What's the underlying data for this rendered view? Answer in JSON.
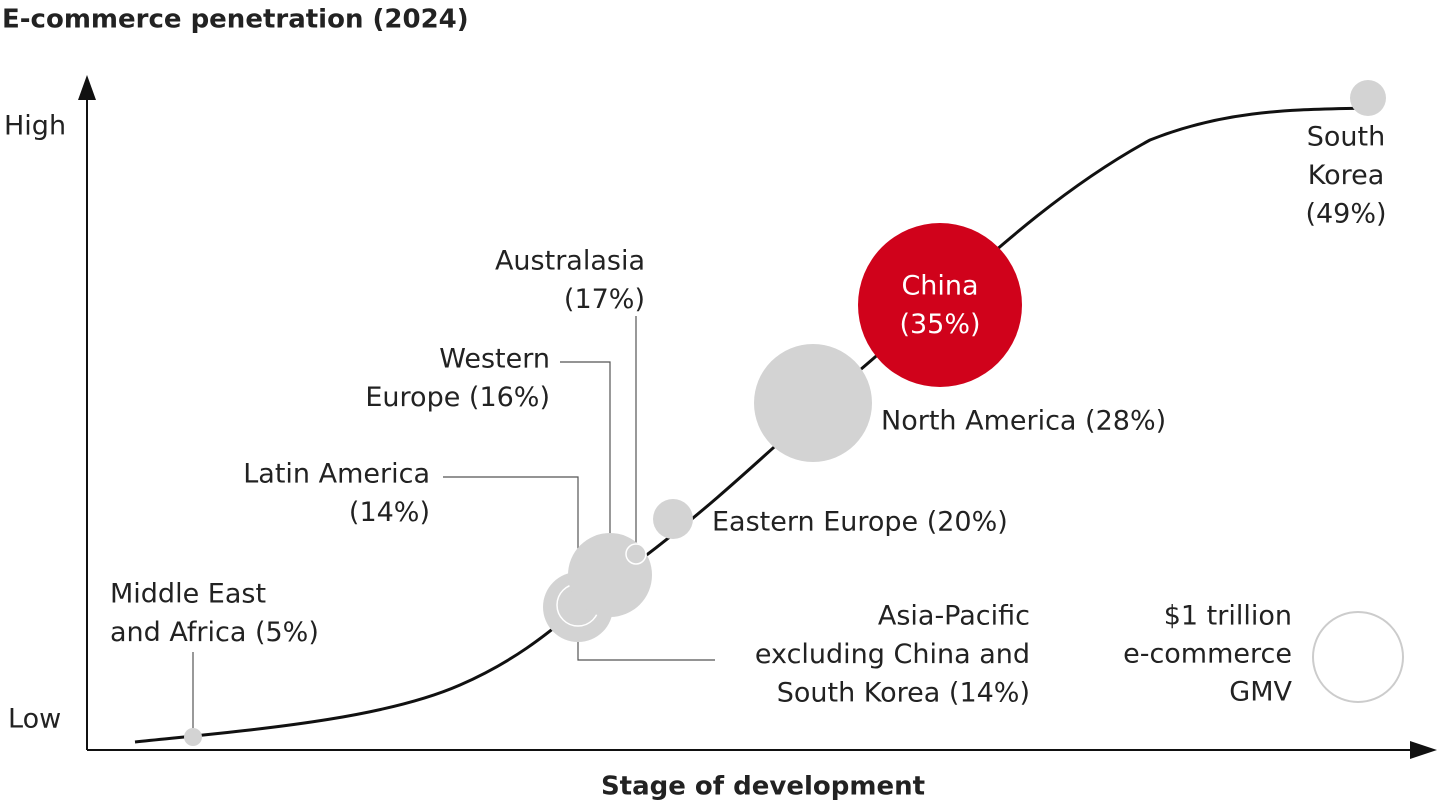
{
  "title": "E-commerce penetration (2024)",
  "y_axis": {
    "high": "High",
    "low": "Low"
  },
  "x_axis_label": "Stage of development",
  "regions": [
    {
      "label": [
        "Middle East",
        "and Africa (5%)"
      ]
    },
    {
      "label": [
        "Asia-Pacific",
        "excluding China and",
        "South Korea (14%)"
      ]
    },
    {
      "label": [
        "Latin America",
        "(14%)"
      ]
    },
    {
      "label": [
        "Western",
        "Europe (16%)"
      ]
    },
    {
      "label": [
        "Australasia",
        "(17%)"
      ]
    },
    {
      "label": [
        "Eastern Europe (20%)"
      ]
    },
    {
      "label": [
        "North America (28%)"
      ]
    },
    {
      "label": [
        "China",
        "(35%)"
      ]
    },
    {
      "label": [
        "South",
        "Korea",
        "(49%)"
      ]
    }
  ],
  "legend": {
    "label": [
      "$1 trillion",
      "e-commerce",
      "GMV"
    ]
  }
}
